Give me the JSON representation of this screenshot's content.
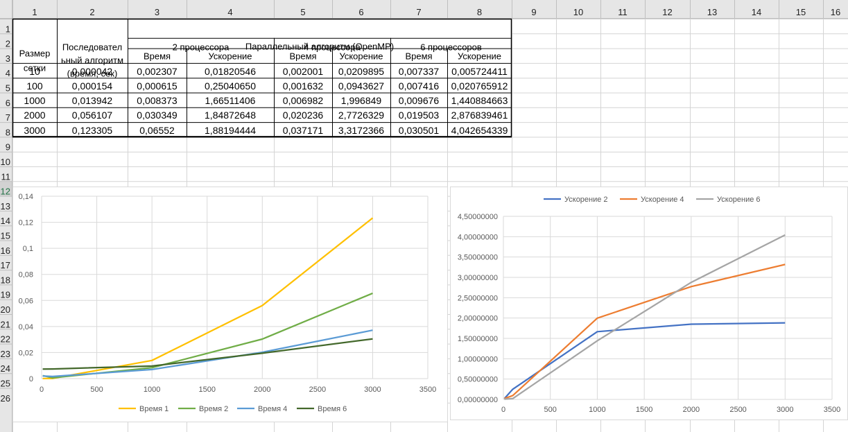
{
  "columns": [
    "1",
    "2",
    "3",
    "4",
    "5",
    "6",
    "7",
    "8",
    "9",
    "10",
    "11",
    "12",
    "13",
    "14",
    "15",
    "16"
  ],
  "rows": [
    "1",
    "2",
    "3",
    "4",
    "5",
    "6",
    "7",
    "8",
    "9",
    "10",
    "11",
    "12",
    "13",
    "14",
    "15",
    "16",
    "17",
    "18",
    "19",
    "20",
    "21",
    "22",
    "23",
    "24",
    "25",
    "26"
  ],
  "selected_row": "12",
  "colors": {
    "header_bg": "#e6e6e6",
    "gridline": "#d4d4d4",
    "selected_header_bg": "#d2d2d2",
    "selected_header_text": "#217346",
    "speedup2": "#4472c4",
    "speedup4": "#ed7d31",
    "speedup6": "#a5a5a5",
    "time1": "#ffc000",
    "time2": "#70ad47",
    "time4": "#5b9bd5",
    "time6": "#43682b"
  },
  "table": {
    "size_header": [
      "Размер",
      "сетки"
    ],
    "seq_header": [
      "Последовател",
      "ьный алгоритм",
      "(время, сек)"
    ],
    "parallel_header": "Параллельный алгоритм (OpenMP)",
    "proc2": "2 процессора",
    "proc4": "4 процессора",
    "proc6": "6 процессоров",
    "time_label": "Время",
    "speedup_label": "Ускорение",
    "rows": [
      [
        "10",
        "0,000042",
        "0,002307",
        "0,01820546",
        "0,002001",
        "0,0209895",
        "0,007337",
        "0,005724411"
      ],
      [
        "100",
        "0,000154",
        "0,000615",
        "0,25040650",
        "0,001632",
        "0,0943627",
        "0,007416",
        "0,020765912"
      ],
      [
        "1000",
        "0,013942",
        "0,008373",
        "1,66511406",
        "0,006982",
        "1,996849",
        "0,009676",
        "1,440884663"
      ],
      [
        "2000",
        "0,056107",
        "0,030349",
        "1,84872648",
        "0,020236",
        "2,7726329",
        "0,019503",
        "2,876839461"
      ],
      [
        "3000",
        "0,123305",
        "0,06552",
        "1,88194444",
        "0,037171",
        "3,3172366",
        "0,030501",
        "4,042654339"
      ]
    ]
  },
  "chart_data": [
    {
      "type": "line",
      "x": [
        10,
        100,
        1000,
        2000,
        3000
      ],
      "xlim": [
        0,
        3500
      ],
      "ylim": [
        0,
        0.14
      ],
      "x_ticks": [
        "0",
        "500",
        "1000",
        "1500",
        "2000",
        "2500",
        "3000",
        "3500"
      ],
      "y_ticks": [
        "0",
        "0,02",
        "0,04",
        "0,06",
        "0,08",
        "0,1",
        "0,12",
        "0,14"
      ],
      "legend_position": "bottom",
      "series": [
        {
          "name": "Время 1",
          "values": [
            4.2e-05,
            0.000154,
            0.013942,
            0.056107,
            0.123305
          ]
        },
        {
          "name": "Время 2",
          "values": [
            0.002307,
            0.000615,
            0.008373,
            0.030349,
            0.06552
          ]
        },
        {
          "name": "Время 4",
          "values": [
            0.002001,
            0.001632,
            0.006982,
            0.020236,
            0.037171
          ]
        },
        {
          "name": "Время 6",
          "values": [
            0.007337,
            0.007416,
            0.009676,
            0.019503,
            0.030501
          ]
        }
      ]
    },
    {
      "type": "line",
      "x": [
        10,
        100,
        1000,
        2000,
        3000
      ],
      "xlim": [
        0,
        3500
      ],
      "ylim": [
        0,
        4.5
      ],
      "x_ticks": [
        "0",
        "500",
        "1000",
        "1500",
        "2000",
        "2500",
        "3000",
        "3500"
      ],
      "y_ticks": [
        "0,00000000",
        "0,50000000",
        "1,00000000",
        "1,50000000",
        "2,00000000",
        "2,50000000",
        "3,00000000",
        "3,50000000",
        "4,00000000",
        "4,50000000"
      ],
      "legend_position": "top",
      "series": [
        {
          "name": "Ускорение 2",
          "values": [
            0.01820546,
            0.2504065,
            1.66511406,
            1.84872648,
            1.88194444
          ]
        },
        {
          "name": "Ускорение 4",
          "values": [
            0.0209895,
            0.0943627,
            1.996849,
            2.7726329,
            3.3172366
          ]
        },
        {
          "name": "Ускорение 6",
          "values": [
            0.005724411,
            0.020765912,
            1.440884663,
            2.876839461,
            4.042654339
          ]
        }
      ]
    }
  ]
}
